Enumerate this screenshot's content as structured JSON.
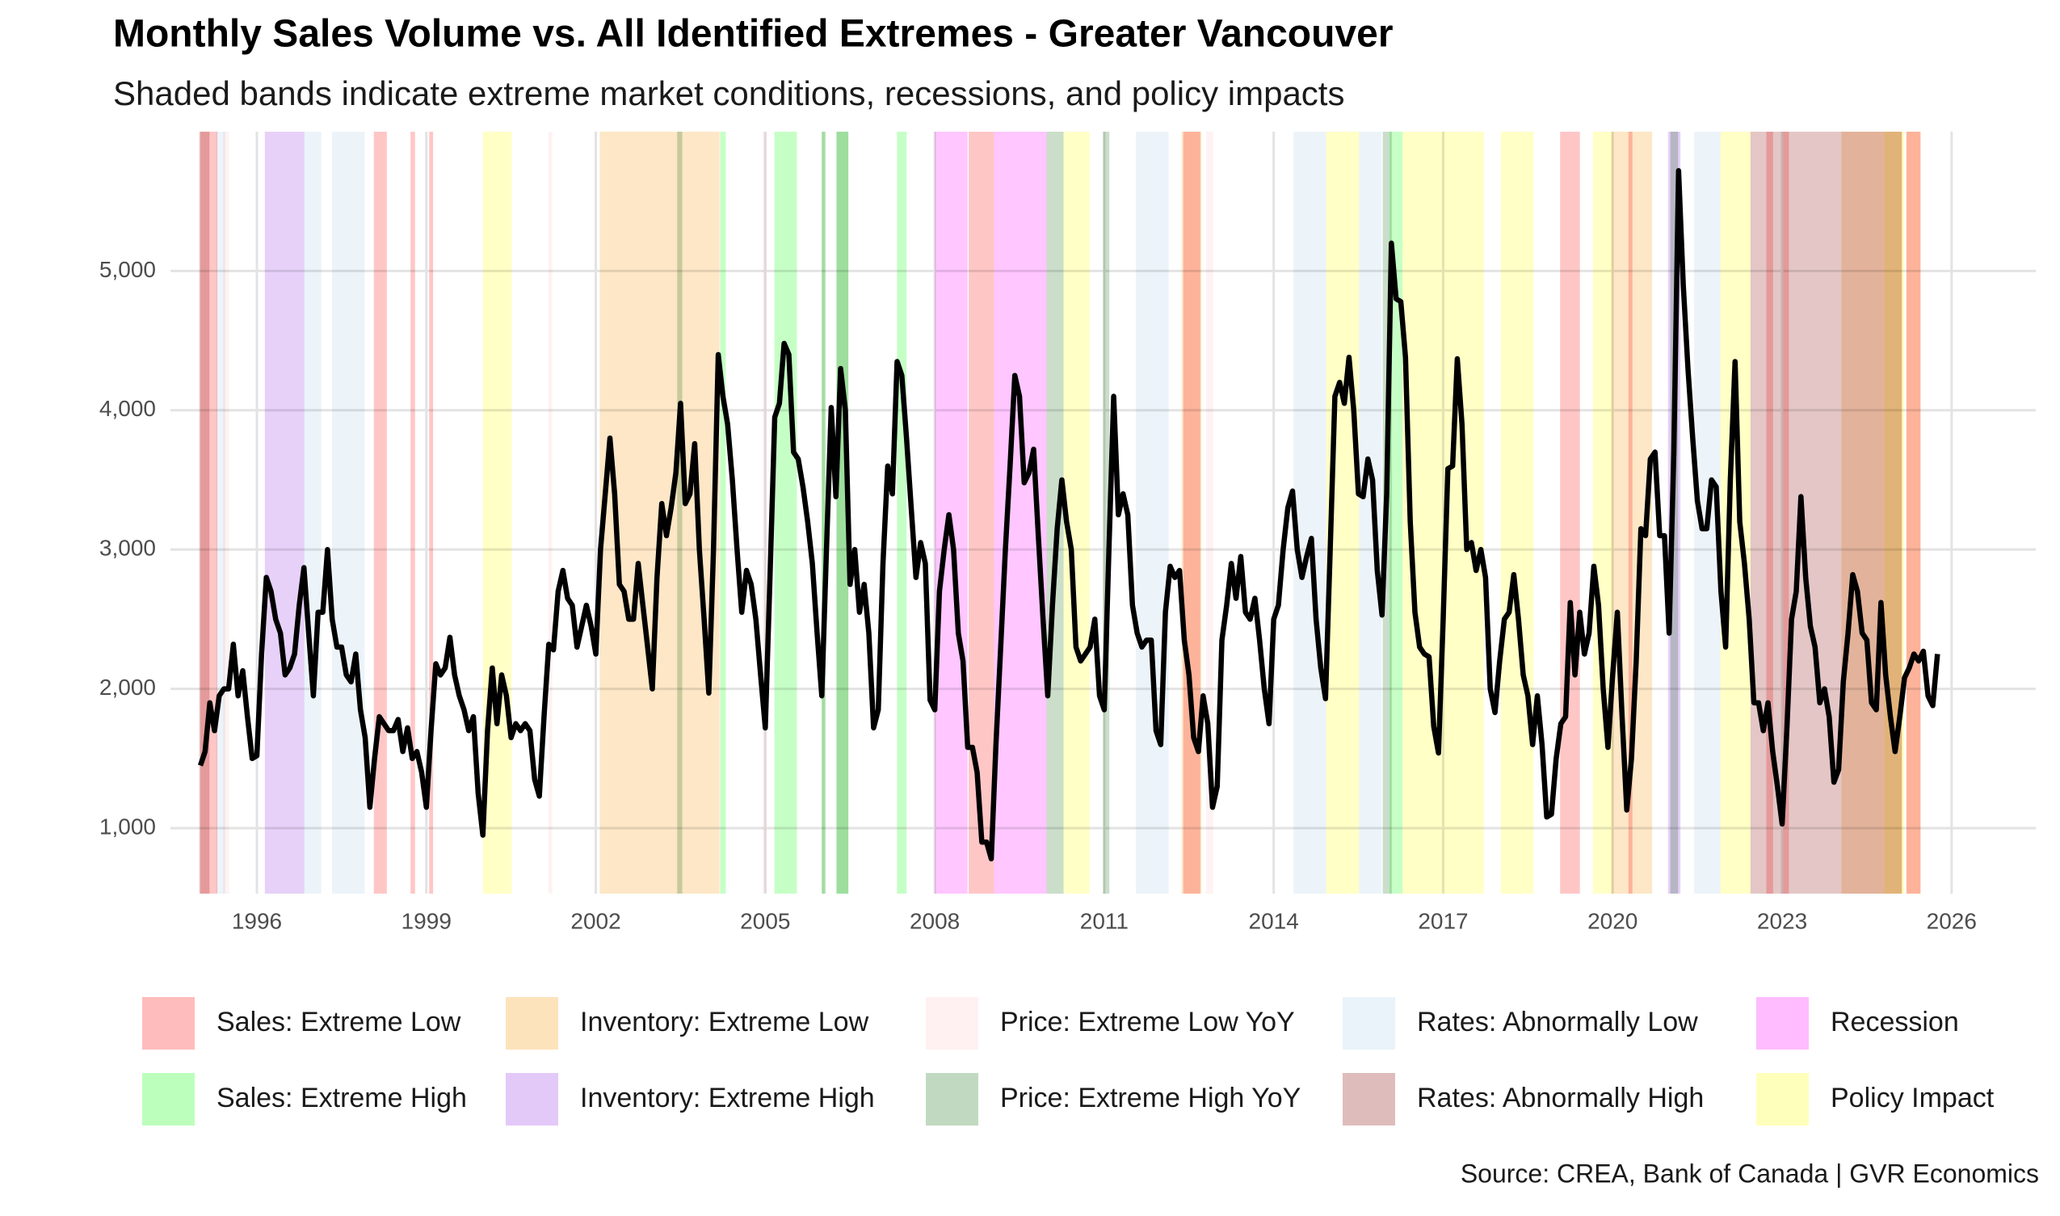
{
  "chart_data": {
    "type": "line",
    "title": "Monthly Sales Volume vs. All Identified Extremes - Greater Vancouver",
    "subtitle": "Shaded bands indicate extreme market conditions, recessions, and policy impacts",
    "source": "Source: CREA, Bank of Canada | GVR Economics",
    "color": "#000000",
    "xlim": [
      1994.47,
      2027.49
    ],
    "xticks": [
      1996,
      1999,
      2002,
      2005,
      2008,
      2011,
      2014,
      2017,
      2020,
      2023,
      2026
    ],
    "ylim": [
      530,
      6000
    ],
    "yticks": [
      {
        "value": 1000,
        "label": "1,000"
      },
      {
        "value": 2000,
        "label": "2,000"
      },
      {
        "value": 3000,
        "label": "3,000"
      },
      {
        "value": 4000,
        "label": "4,000"
      },
      {
        "value": 5000,
        "label": "5,000"
      }
    ],
    "grid": true,
    "x": [
      1995,
      1995.083,
      1995.167,
      1995.25,
      1995.333,
      1995.417,
      1995.5,
      1995.583,
      1995.667,
      1995.75,
      1995.833,
      1995.917,
      1996,
      1996.083,
      1996.167,
      1996.25,
      1996.333,
      1996.417,
      1996.5,
      1996.583,
      1996.667,
      1996.75,
      1996.833,
      1996.917,
      1997,
      1997.083,
      1997.167,
      1997.25,
      1997.333,
      1997.417,
      1997.5,
      1997.583,
      1997.667,
      1997.75,
      1997.833,
      1997.917,
      1998,
      1998.083,
      1998.167,
      1998.25,
      1998.333,
      1998.417,
      1998.5,
      1998.583,
      1998.667,
      1998.75,
      1998.833,
      1998.917,
      1999,
      1999.083,
      1999.167,
      1999.25,
      1999.333,
      1999.417,
      1999.5,
      1999.583,
      1999.667,
      1999.75,
      1999.833,
      1999.917,
      2000,
      2000.083,
      2000.167,
      2000.25,
      2000.333,
      2000.417,
      2000.5,
      2000.583,
      2000.667,
      2000.75,
      2000.833,
      2000.917,
      2001,
      2001.083,
      2001.167,
      2001.25,
      2001.333,
      2001.417,
      2001.5,
      2001.583,
      2001.667,
      2001.75,
      2001.833,
      2001.917,
      2002,
      2002.083,
      2002.167,
      2002.25,
      2002.333,
      2002.417,
      2002.5,
      2002.583,
      2002.667,
      2002.75,
      2002.833,
      2002.917,
      2003,
      2003.083,
      2003.167,
      2003.25,
      2003.333,
      2003.417,
      2003.5,
      2003.583,
      2003.667,
      2003.75,
      2003.833,
      2003.917,
      2004,
      2004.083,
      2004.167,
      2004.25,
      2004.333,
      2004.417,
      2004.5,
      2004.583,
      2004.667,
      2004.75,
      2004.833,
      2004.917,
      2005,
      2005.083,
      2005.167,
      2005.25,
      2005.333,
      2005.417,
      2005.5,
      2005.583,
      2005.667,
      2005.75,
      2005.833,
      2005.917,
      2006,
      2006.083,
      2006.167,
      2006.25,
      2006.333,
      2006.417,
      2006.5,
      2006.583,
      2006.667,
      2006.75,
      2006.833,
      2006.917,
      2007,
      2007.083,
      2007.167,
      2007.25,
      2007.333,
      2007.417,
      2007.5,
      2007.583,
      2007.667,
      2007.75,
      2007.833,
      2007.917,
      2008,
      2008.083,
      2008.167,
      2008.25,
      2008.333,
      2008.417,
      2008.5,
      2008.583,
      2008.667,
      2008.75,
      2008.833,
      2008.917,
      2009,
      2009.083,
      2009.167,
      2009.25,
      2009.333,
      2009.417,
      2009.5,
      2009.583,
      2009.667,
      2009.75,
      2009.833,
      2009.917,
      2010,
      2010.083,
      2010.167,
      2010.25,
      2010.333,
      2010.417,
      2010.5,
      2010.583,
      2010.667,
      2010.75,
      2010.833,
      2010.917,
      2011,
      2011.083,
      2011.167,
      2011.25,
      2011.333,
      2011.417,
      2011.5,
      2011.583,
      2011.667,
      2011.75,
      2011.833,
      2011.917,
      2012,
      2012.083,
      2012.167,
      2012.25,
      2012.333,
      2012.417,
      2012.5,
      2012.583,
      2012.667,
      2012.75,
      2012.833,
      2012.917,
      2013,
      2013.083,
      2013.167,
      2013.25,
      2013.333,
      2013.417,
      2013.5,
      2013.583,
      2013.667,
      2013.75,
      2013.833,
      2013.917,
      2014,
      2014.083,
      2014.167,
      2014.25,
      2014.333,
      2014.417,
      2014.5,
      2014.583,
      2014.667,
      2014.75,
      2014.833,
      2014.917,
      2015,
      2015.083,
      2015.167,
      2015.25,
      2015.333,
      2015.417,
      2015.5,
      2015.583,
      2015.667,
      2015.75,
      2015.833,
      2015.917,
      2016,
      2016.083,
      2016.167,
      2016.25,
      2016.333,
      2016.417,
      2016.5,
      2016.583,
      2016.667,
      2016.75,
      2016.833,
      2016.917,
      2017,
      2017.083,
      2017.167,
      2017.25,
      2017.333,
      2017.417,
      2017.5,
      2017.583,
      2017.667,
      2017.75,
      2017.833,
      2017.917,
      2018,
      2018.083,
      2018.167,
      2018.25,
      2018.333,
      2018.417,
      2018.5,
      2018.583,
      2018.667,
      2018.75,
      2018.833,
      2018.917,
      2019,
      2019.083,
      2019.167,
      2019.25,
      2019.333,
      2019.417,
      2019.5,
      2019.583,
      2019.667,
      2019.75,
      2019.833,
      2019.917,
      2020,
      2020.083,
      2020.167,
      2020.25,
      2020.333,
      2020.417,
      2020.5,
      2020.583,
      2020.667,
      2020.75,
      2020.833,
      2020.917,
      2021,
      2021.083,
      2021.167,
      2021.25,
      2021.333,
      2021.417,
      2021.5,
      2021.583,
      2021.667,
      2021.75,
      2021.833,
      2021.917,
      2022,
      2022.083,
      2022.167,
      2022.25,
      2022.333,
      2022.417,
      2022.5,
      2022.583,
      2022.667,
      2022.75,
      2022.833,
      2022.917,
      2023,
      2023.083,
      2023.167,
      2023.25,
      2023.333,
      2023.417,
      2023.5,
      2023.583,
      2023.667,
      2023.75,
      2023.833,
      2023.917,
      2024,
      2024.083,
      2024.167,
      2024.25,
      2024.333,
      2024.417,
      2024.5,
      2024.583,
      2024.667,
      2024.75,
      2024.833,
      2024.917,
      2025,
      2025.083,
      2025.167,
      2025.25,
      2025.333,
      2025.417,
      2025.5,
      2025.583,
      2025.667,
      2025.75
    ],
    "values": [
      1450,
      1550,
      1900,
      1700,
      1950,
      2000,
      2000,
      2320,
      1950,
      2130,
      1800,
      1500,
      1520,
      2250,
      2800,
      2700,
      2500,
      2400,
      2100,
      2150,
      2250,
      2600,
      2870,
      2400,
      1950,
      2550,
      2550,
      3000,
      2500,
      2300,
      2300,
      2100,
      2050,
      2250,
      1850,
      1650,
      1150,
      1500,
      1800,
      1750,
      1700,
      1700,
      1780,
      1550,
      1720,
      1500,
      1550,
      1400,
      1150,
      1700,
      2180,
      2100,
      2150,
      2370,
      2100,
      1950,
      1850,
      1700,
      1800,
      1250,
      950,
      1700,
      2150,
      1750,
      2100,
      1950,
      1650,
      1750,
      1700,
      1750,
      1700,
      1350,
      1230,
      1800,
      2320,
      2280,
      2700,
      2850,
      2650,
      2600,
      2300,
      2450,
      2600,
      2450,
      2250,
      3000,
      3400,
      3800,
      3400,
      2750,
      2700,
      2500,
      2500,
      2900,
      2600,
      2300,
      2000,
      2800,
      3330,
      3100,
      3300,
      3550,
      4050,
      3330,
      3400,
      3760,
      3000,
      2500,
      1970,
      3000,
      4400,
      4100,
      3900,
      3500,
      3000,
      2550,
      2850,
      2750,
      2500,
      2100,
      1720,
      2800,
      3950,
      4050,
      4480,
      4400,
      3700,
      3650,
      3450,
      3200,
      2900,
      2400,
      1950,
      3000,
      4020,
      3380,
      4300,
      4000,
      2750,
      3000,
      2550,
      2750,
      2400,
      1720,
      1850,
      2900,
      3600,
      3400,
      4350,
      4250,
      3800,
      3300,
      2800,
      3050,
      2900,
      1920,
      1850,
      2700,
      3000,
      3250,
      3000,
      2400,
      2200,
      1580,
      1580,
      1400,
      900,
      900,
      780,
      1600,
      2300,
      3000,
      3600,
      4250,
      4100,
      3480,
      3550,
      3720,
      3100,
      2500,
      1950,
      2600,
      3150,
      3500,
      3200,
      3000,
      2300,
      2200,
      2250,
      2300,
      2500,
      1950,
      1850,
      3000,
      4100,
      3250,
      3400,
      3250,
      2600,
      2400,
      2300,
      2350,
      2350,
      1700,
      1600,
      2550,
      2880,
      2800,
      2850,
      2350,
      2100,
      1650,
      1550,
      1950,
      1750,
      1150,
      1300,
      2350,
      2600,
      2900,
      2650,
      2950,
      2550,
      2500,
      2650,
      2350,
      2000,
      1750,
      2500,
      2600,
      3000,
      3300,
      3420,
      3000,
      2800,
      2950,
      3080,
      2500,
      2150,
      1930,
      3000,
      4100,
      4200,
      4050,
      4380,
      4000,
      3400,
      3380,
      3650,
      3500,
      2850,
      2530,
      3400,
      5200,
      4800,
      4780,
      4380,
      3200,
      2550,
      2300,
      2250,
      2230,
      1730,
      1540,
      2500,
      3580,
      3600,
      4370,
      3900,
      3000,
      3050,
      2850,
      3000,
      2800,
      2000,
      1830,
      2200,
      2500,
      2550,
      2820,
      2500,
      2100,
      1950,
      1600,
      1950,
      1600,
      1080,
      1100,
      1500,
      1750,
      1800,
      2620,
      2100,
      2550,
      2250,
      2400,
      2880,
      2600,
      2000,
      1580,
      2100,
      2550,
      1800,
      1130,
      1500,
      2200,
      3150,
      3100,
      3650,
      3700,
      3100,
      3100,
      2400,
      3700,
      5720,
      4900,
      4300,
      3800,
      3350,
      3150,
      3150,
      3500,
      3450,
      2700,
      2300,
      3500,
      4350,
      3200,
      2900,
      2500,
      1900,
      1900,
      1700,
      1900,
      1550,
      1300,
      1030,
      1700,
      2500,
      2700,
      3380,
      2800,
      2450,
      2300,
      1900,
      2000,
      1800,
      1330,
      1420,
      2050,
      2400,
      2820,
      2700,
      2400,
      2350,
      1900,
      1850,
      2620,
      2100,
      1800,
      1550,
      1800,
      2080,
      2150,
      2250,
      2200,
      2270,
      1950,
      1880,
      2250
    ],
    "bands": [
      {
        "name": "Sales: Extreme Low",
        "color": "#ffbcbc",
        "ranges": [
          [
            1995.0,
            1995.3
          ],
          [
            1998.07,
            1998.3
          ],
          [
            1998.72,
            1998.8
          ],
          [
            1999.05,
            1999.12
          ],
          [
            2008.6,
            2009.05
          ],
          [
            2012.4,
            2012.7
          ],
          [
            2019.07,
            2019.42
          ],
          [
            2020.28,
            2020.35
          ],
          [
            2022.72,
            2022.84
          ],
          [
            2023.02,
            2023.12
          ],
          [
            2025.2,
            2025.45
          ]
        ]
      },
      {
        "name": "Sales: Extreme High",
        "color": "#bcffbc",
        "ranges": [
          [
            2004.2,
            2004.3
          ],
          [
            2005.16,
            2005.56
          ],
          [
            2006.0,
            2006.05
          ],
          [
            2006.26,
            2006.47
          ],
          [
            2007.33,
            2007.5
          ],
          [
            2016.05,
            2016.28
          ]
        ]
      },
      {
        "name": "Inventory: Extreme Low",
        "color": "#fde3bc",
        "ranges": [
          [
            2002.07,
            2004.19
          ],
          [
            2012.37,
            2012.72
          ],
          [
            2019.98,
            2020.7
          ],
          [
            2024.05,
            2025.12
          ],
          [
            2025.2,
            2025.45
          ]
        ]
      },
      {
        "name": "Inventory: Extreme High",
        "color": "#e3c9f8",
        "ranges": [
          [
            1996.14,
            1996.84
          ],
          [
            2020.98,
            2021.2
          ]
        ]
      },
      {
        "name": "Price: Extreme Low YoY",
        "color": "#fff0f1",
        "ranges": [
          [
            1995.4,
            1995.51
          ],
          [
            2001.16,
            2001.23
          ],
          [
            2004.95,
            2005.02
          ],
          [
            2012.8,
            2012.93
          ]
        ]
      },
      {
        "name": "Price: Extreme High YoY",
        "color": "#c1d9c1",
        "ranges": [
          [
            2003.44,
            2003.53
          ],
          [
            2006.0,
            2006.07
          ],
          [
            2006.26,
            2006.47
          ],
          [
            2009.98,
            2010.28
          ],
          [
            2010.98,
            2011.09
          ],
          [
            2015.93,
            2016.09
          ],
          [
            2021.02,
            2021.16
          ]
        ]
      },
      {
        "name": "Rates: Abnormally Low",
        "color": "#e9f3f9",
        "ranges": [
          [
            1995.28,
            1995.44
          ],
          [
            1996.84,
            1997.14
          ],
          [
            1997.33,
            1997.91
          ],
          [
            2011.56,
            2012.14
          ],
          [
            2014.35,
            2014.93
          ],
          [
            2015.51,
            2015.91
          ],
          [
            2021.44,
            2021.91
          ]
        ]
      },
      {
        "name": "Rates: Abnormally High",
        "color": "#dfbcbc",
        "ranges": [
          [
            1994.98,
            1995.16
          ],
          [
            2022.44,
            2024.05
          ],
          [
            2024.05,
            2025.12
          ]
        ]
      },
      {
        "name": "Recession",
        "color": "#ffbcff",
        "ranges": [
          [
            2008.0,
            2008.58
          ],
          [
            2009.05,
            2009.98
          ]
        ]
      },
      {
        "name": "Policy Impact",
        "color": "#ffffbc",
        "ranges": [
          [
            2000.0,
            2000.51
          ],
          [
            2010.28,
            2010.74
          ],
          [
            2014.93,
            2015.51
          ],
          [
            2016.28,
            2017.72
          ],
          [
            2018.02,
            2018.6
          ],
          [
            2019.65,
            2020.0
          ],
          [
            2021.91,
            2022.44
          ],
          [
            2024.81,
            2025.16
          ]
        ]
      }
    ]
  }
}
